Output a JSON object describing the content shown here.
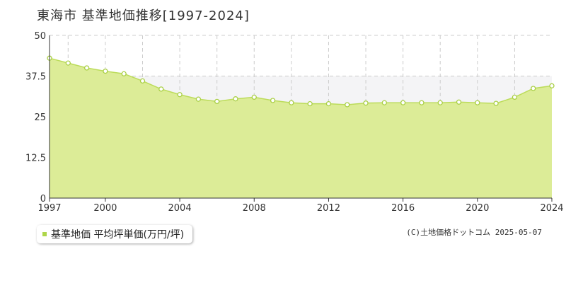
{
  "chart_data": {
    "type": "area",
    "title": "東海市 基準地価推移[1997-2024]",
    "legend": "基準地価 平均坪単価(万円/坪)",
    "x": [
      1997,
      1998,
      1999,
      2000,
      2001,
      2002,
      2003,
      2004,
      2005,
      2006,
      2007,
      2008,
      2009,
      2010,
      2011,
      2012,
      2013,
      2014,
      2015,
      2016,
      2017,
      2018,
      2019,
      2020,
      2021,
      2022,
      2023,
      2024
    ],
    "series": [
      {
        "name": "基準地価 平均坪単価(万円/坪)",
        "values": [
          43.0,
          41.5,
          40.0,
          39.0,
          38.2,
          36.0,
          33.5,
          31.8,
          30.4,
          29.7,
          30.5,
          31.0,
          30.0,
          29.3,
          29.0,
          29.0,
          28.7,
          29.2,
          29.3,
          29.3,
          29.3,
          29.3,
          29.5,
          29.3,
          29.1,
          31.0,
          33.7,
          34.5
        ]
      }
    ],
    "x_ticks": [
      "1997",
      "2000",
      "2004",
      "2008",
      "2012",
      "2016",
      "2020",
      "2024"
    ],
    "y_ticks": [
      "0",
      "12.5",
      "25",
      "37.5",
      "50"
    ],
    "ylim": [
      0,
      50
    ],
    "xlim": [
      1997,
      2024
    ],
    "grid": true,
    "colors": {
      "fill": "#dcec97",
      "line": "#bcdc5a",
      "point_stroke": "#a9cf45",
      "upper_band": "#f4f4f6",
      "grid": "#cccccc"
    }
  },
  "credit": "(C)土地価格ドットコム 2025-05-07"
}
